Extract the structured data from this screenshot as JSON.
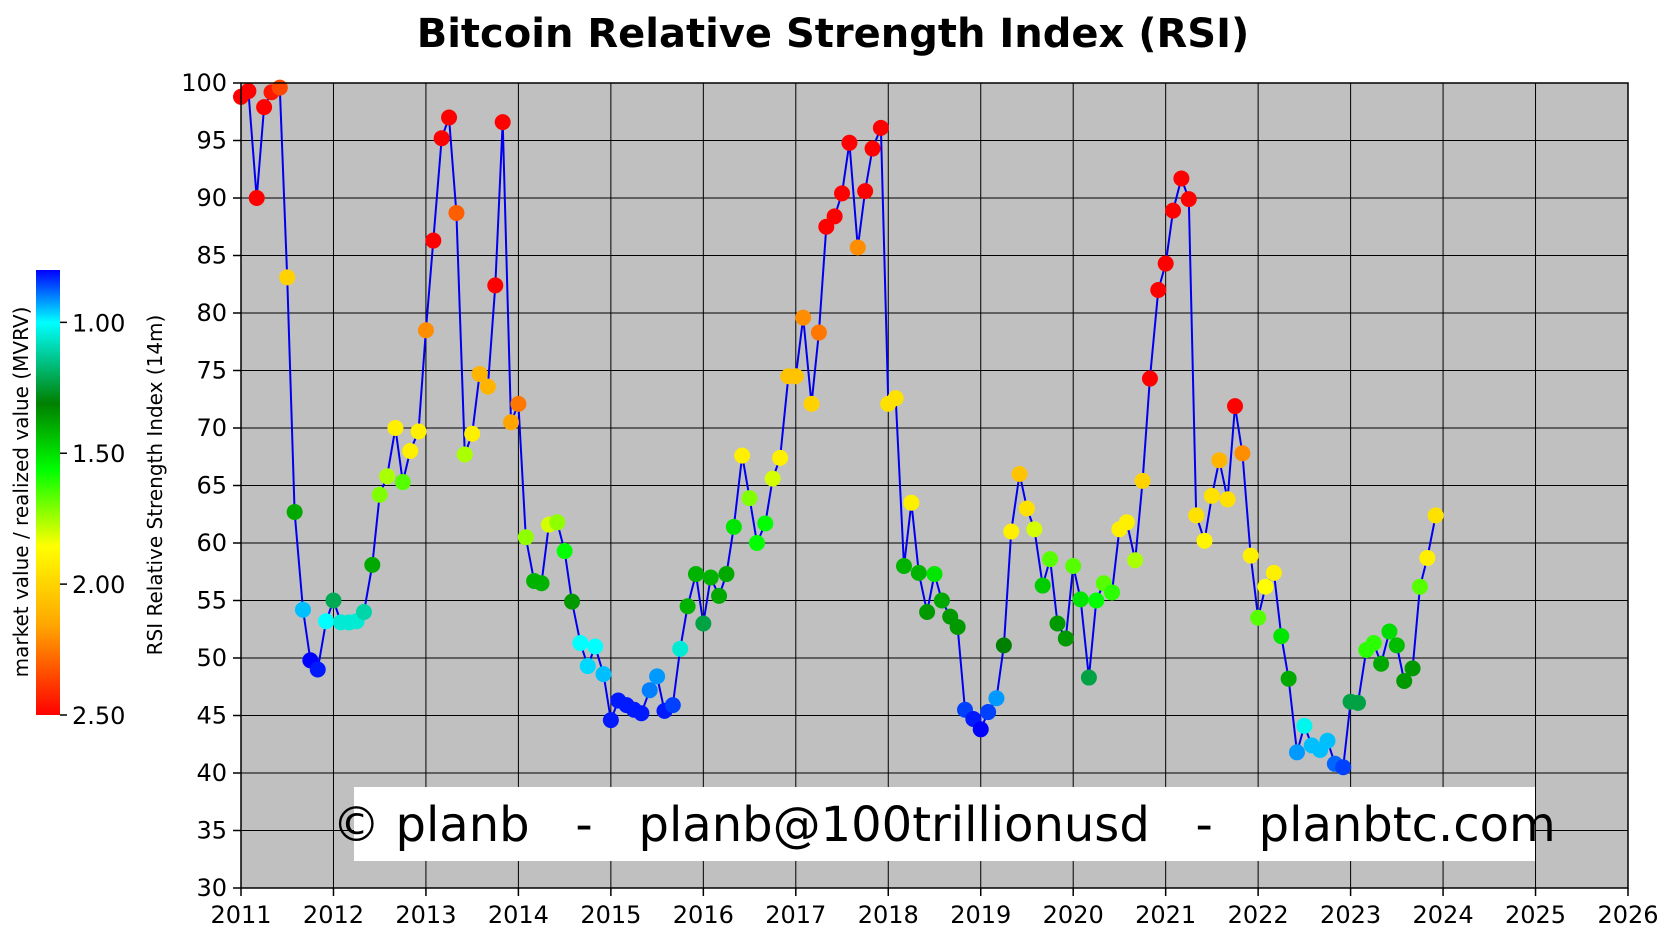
{
  "chart_data": {
    "type": "scatter",
    "title": "Bitcoin Relative Strength Index (RSI)",
    "ylabel": "RSI Relative Strength Index (14m)",
    "xlim": [
      2011,
      2026
    ],
    "ylim": [
      30,
      100
    ],
    "x_ticks": [
      "2011",
      "2012",
      "2013",
      "2014",
      "2015",
      "2016",
      "2017",
      "2018",
      "2019",
      "2020",
      "2021",
      "2022",
      "2023",
      "2024",
      "2025",
      "2026"
    ],
    "y_ticks": [
      "30",
      "35",
      "40",
      "45",
      "50",
      "55",
      "60",
      "65",
      "70",
      "75",
      "80",
      "85",
      "90",
      "95",
      "100"
    ],
    "grid": true,
    "background": "#c0c0c0",
    "line_color": "#0000ee",
    "colorbar": {
      "label": "market value / realized value (MVRV)",
      "ticks": [
        "1.00",
        "1.50",
        "2.00",
        "2.50"
      ],
      "tick_values": [
        1.0,
        1.5,
        2.0,
        2.5
      ],
      "range": [
        0.8,
        2.5
      ],
      "colors": [
        "#0000ff",
        "#00ffff",
        "#008000",
        "#00ff00",
        "#ffff00",
        "#ffa500",
        "#ff0000"
      ]
    },
    "watermark": "© planb   -   planb@100trillionusd   -   planbtc.com",
    "points": [
      {
        "x": 2011.0,
        "y": 98.8,
        "mvrv": 2.5
      },
      {
        "x": 2011.08,
        "y": 99.3,
        "mvrv": 2.5
      },
      {
        "x": 2011.17,
        "y": 90.0,
        "mvrv": 2.5
      },
      {
        "x": 2011.25,
        "y": 97.9,
        "mvrv": 2.5
      },
      {
        "x": 2011.33,
        "y": 99.2,
        "mvrv": 2.45
      },
      {
        "x": 2011.42,
        "y": 99.6,
        "mvrv": 2.35
      },
      {
        "x": 2011.5,
        "y": 83.1,
        "mvrv": 2.0
      },
      {
        "x": 2011.58,
        "y": 62.7,
        "mvrv": 1.38
      },
      {
        "x": 2011.67,
        "y": 54.2,
        "mvrv": 0.95
      },
      {
        "x": 2011.75,
        "y": 49.8,
        "mvrv": 0.8
      },
      {
        "x": 2011.83,
        "y": 49.0,
        "mvrv": 0.82
      },
      {
        "x": 2011.92,
        "y": 53.2,
        "mvrv": 1.0
      },
      {
        "x": 2012.0,
        "y": 55.0,
        "mvrv": 1.2
      },
      {
        "x": 2012.08,
        "y": 53.1,
        "mvrv": 1.05
      },
      {
        "x": 2012.17,
        "y": 53.1,
        "mvrv": 1.05
      },
      {
        "x": 2012.25,
        "y": 53.2,
        "mvrv": 1.05
      },
      {
        "x": 2012.33,
        "y": 54.0,
        "mvrv": 1.1
      },
      {
        "x": 2012.42,
        "y": 58.1,
        "mvrv": 1.38
      },
      {
        "x": 2012.5,
        "y": 64.2,
        "mvrv": 1.7
      },
      {
        "x": 2012.58,
        "y": 65.8,
        "mvrv": 1.75
      },
      {
        "x": 2012.67,
        "y": 70.0,
        "mvrv": 1.9
      },
      {
        "x": 2012.75,
        "y": 65.3,
        "mvrv": 1.65
      },
      {
        "x": 2012.83,
        "y": 68.0,
        "mvrv": 1.9
      },
      {
        "x": 2012.92,
        "y": 69.7,
        "mvrv": 1.9
      },
      {
        "x": 2013.0,
        "y": 78.5,
        "mvrv": 2.2
      },
      {
        "x": 2013.08,
        "y": 86.3,
        "mvrv": 2.5
      },
      {
        "x": 2013.17,
        "y": 95.2,
        "mvrv": 2.5
      },
      {
        "x": 2013.25,
        "y": 97.0,
        "mvrv": 2.5
      },
      {
        "x": 2013.33,
        "y": 88.7,
        "mvrv": 2.3
      },
      {
        "x": 2013.42,
        "y": 67.7,
        "mvrv": 1.75
      },
      {
        "x": 2013.5,
        "y": 69.5,
        "mvrv": 1.9
      },
      {
        "x": 2013.58,
        "y": 74.7,
        "mvrv": 2.1
      },
      {
        "x": 2013.67,
        "y": 73.6,
        "mvrv": 2.1
      },
      {
        "x": 2013.75,
        "y": 82.4,
        "mvrv": 2.5
      },
      {
        "x": 2013.83,
        "y": 96.6,
        "mvrv": 2.5
      },
      {
        "x": 2013.92,
        "y": 70.5,
        "mvrv": 2.15
      },
      {
        "x": 2014.0,
        "y": 72.1,
        "mvrv": 2.25
      },
      {
        "x": 2014.08,
        "y": 60.5,
        "mvrv": 1.72
      },
      {
        "x": 2014.17,
        "y": 56.7,
        "mvrv": 1.4
      },
      {
        "x": 2014.25,
        "y": 56.5,
        "mvrv": 1.4
      },
      {
        "x": 2014.33,
        "y": 61.6,
        "mvrv": 1.8
      },
      {
        "x": 2014.42,
        "y": 61.8,
        "mvrv": 1.72
      },
      {
        "x": 2014.5,
        "y": 59.3,
        "mvrv": 1.55
      },
      {
        "x": 2014.58,
        "y": 54.9,
        "mvrv": 1.35
      },
      {
        "x": 2014.67,
        "y": 51.3,
        "mvrv": 1.0
      },
      {
        "x": 2014.75,
        "y": 49.3,
        "mvrv": 0.97
      },
      {
        "x": 2014.83,
        "y": 51.0,
        "mvrv": 1.0
      },
      {
        "x": 2014.92,
        "y": 48.6,
        "mvrv": 0.95
      },
      {
        "x": 2015.0,
        "y": 44.6,
        "mvrv": 0.82
      },
      {
        "x": 2015.08,
        "y": 46.3,
        "mvrv": 0.82
      },
      {
        "x": 2015.17,
        "y": 45.9,
        "mvrv": 0.82
      },
      {
        "x": 2015.25,
        "y": 45.5,
        "mvrv": 0.82
      },
      {
        "x": 2015.33,
        "y": 45.2,
        "mvrv": 0.82
      },
      {
        "x": 2015.42,
        "y": 47.2,
        "mvrv": 0.9
      },
      {
        "x": 2015.5,
        "y": 48.4,
        "mvrv": 0.92
      },
      {
        "x": 2015.58,
        "y": 45.4,
        "mvrv": 0.82
      },
      {
        "x": 2015.67,
        "y": 45.9,
        "mvrv": 0.85
      },
      {
        "x": 2015.75,
        "y": 50.8,
        "mvrv": 1.05
      },
      {
        "x": 2015.83,
        "y": 54.5,
        "mvrv": 1.4
      },
      {
        "x": 2015.92,
        "y": 57.3,
        "mvrv": 1.4
      },
      {
        "x": 2016.0,
        "y": 53.0,
        "mvrv": 1.22
      },
      {
        "x": 2016.08,
        "y": 57.0,
        "mvrv": 1.4
      },
      {
        "x": 2016.17,
        "y": 55.4,
        "mvrv": 1.38
      },
      {
        "x": 2016.25,
        "y": 57.3,
        "mvrv": 1.38
      },
      {
        "x": 2016.33,
        "y": 61.4,
        "mvrv": 1.5
      },
      {
        "x": 2016.42,
        "y": 67.6,
        "mvrv": 1.9
      },
      {
        "x": 2016.5,
        "y": 63.9,
        "mvrv": 1.7
      },
      {
        "x": 2016.58,
        "y": 60.0,
        "mvrv": 1.55
      },
      {
        "x": 2016.67,
        "y": 61.7,
        "mvrv": 1.55
      },
      {
        "x": 2016.75,
        "y": 65.6,
        "mvrv": 1.8
      },
      {
        "x": 2016.83,
        "y": 67.4,
        "mvrv": 1.9
      },
      {
        "x": 2016.92,
        "y": 74.5,
        "mvrv": 2.05
      },
      {
        "x": 2017.0,
        "y": 74.5,
        "mvrv": 2.05
      },
      {
        "x": 2017.08,
        "y": 79.6,
        "mvrv": 2.2
      },
      {
        "x": 2017.17,
        "y": 72.1,
        "mvrv": 2.0
      },
      {
        "x": 2017.25,
        "y": 78.3,
        "mvrv": 2.25
      },
      {
        "x": 2017.33,
        "y": 87.5,
        "mvrv": 2.5
      },
      {
        "x": 2017.42,
        "y": 88.4,
        "mvrv": 2.5
      },
      {
        "x": 2017.5,
        "y": 90.4,
        "mvrv": 2.5
      },
      {
        "x": 2017.58,
        "y": 94.8,
        "mvrv": 2.5
      },
      {
        "x": 2017.67,
        "y": 85.7,
        "mvrv": 2.2
      },
      {
        "x": 2017.75,
        "y": 90.6,
        "mvrv": 2.5
      },
      {
        "x": 2017.83,
        "y": 94.3,
        "mvrv": 2.5
      },
      {
        "x": 2017.92,
        "y": 96.1,
        "mvrv": 2.5
      },
      {
        "x": 2018.0,
        "y": 72.1,
        "mvrv": 1.95
      },
      {
        "x": 2018.08,
        "y": 72.6,
        "mvrv": 1.95
      },
      {
        "x": 2018.17,
        "y": 58.0,
        "mvrv": 1.4
      },
      {
        "x": 2018.25,
        "y": 63.5,
        "mvrv": 1.9
      },
      {
        "x": 2018.33,
        "y": 57.4,
        "mvrv": 1.4
      },
      {
        "x": 2018.42,
        "y": 54.0,
        "mvrv": 1.35
      },
      {
        "x": 2018.5,
        "y": 57.3,
        "mvrv": 1.5
      },
      {
        "x": 2018.58,
        "y": 55.0,
        "mvrv": 1.38
      },
      {
        "x": 2018.67,
        "y": 53.6,
        "mvrv": 1.35
      },
      {
        "x": 2018.75,
        "y": 52.7,
        "mvrv": 1.35
      },
      {
        "x": 2018.83,
        "y": 45.5,
        "mvrv": 0.85
      },
      {
        "x": 2018.92,
        "y": 44.7,
        "mvrv": 0.82
      },
      {
        "x": 2019.0,
        "y": 43.8,
        "mvrv": 0.8
      },
      {
        "x": 2019.08,
        "y": 45.3,
        "mvrv": 0.85
      },
      {
        "x": 2019.17,
        "y": 46.5,
        "mvrv": 0.92
      },
      {
        "x": 2019.25,
        "y": 51.1,
        "mvrv": 1.3
      },
      {
        "x": 2019.33,
        "y": 61.0,
        "mvrv": 1.9
      },
      {
        "x": 2019.42,
        "y": 66.0,
        "mvrv": 2.05
      },
      {
        "x": 2019.5,
        "y": 63.0,
        "mvrv": 1.95
      },
      {
        "x": 2019.58,
        "y": 61.2,
        "mvrv": 1.8
      },
      {
        "x": 2019.67,
        "y": 56.3,
        "mvrv": 1.45
      },
      {
        "x": 2019.75,
        "y": 58.6,
        "mvrv": 1.65
      },
      {
        "x": 2019.83,
        "y": 53.0,
        "mvrv": 1.35
      },
      {
        "x": 2019.92,
        "y": 51.7,
        "mvrv": 1.35
      },
      {
        "x": 2020.0,
        "y": 58.0,
        "mvrv": 1.65
      },
      {
        "x": 2020.08,
        "y": 55.1,
        "mvrv": 1.5
      },
      {
        "x": 2020.17,
        "y": 48.3,
        "mvrv": 1.22
      },
      {
        "x": 2020.25,
        "y": 55.0,
        "mvrv": 1.55
      },
      {
        "x": 2020.33,
        "y": 56.5,
        "mvrv": 1.65
      },
      {
        "x": 2020.42,
        "y": 55.7,
        "mvrv": 1.6
      },
      {
        "x": 2020.5,
        "y": 61.2,
        "mvrv": 1.9
      },
      {
        "x": 2020.58,
        "y": 61.8,
        "mvrv": 1.9
      },
      {
        "x": 2020.67,
        "y": 58.5,
        "mvrv": 1.75
      },
      {
        "x": 2020.75,
        "y": 65.4,
        "mvrv": 2.0
      },
      {
        "x": 2020.83,
        "y": 74.3,
        "mvrv": 2.5
      },
      {
        "x": 2020.92,
        "y": 82.0,
        "mvrv": 2.5
      },
      {
        "x": 2021.0,
        "y": 84.3,
        "mvrv": 2.5
      },
      {
        "x": 2021.08,
        "y": 88.9,
        "mvrv": 2.5
      },
      {
        "x": 2021.17,
        "y": 91.7,
        "mvrv": 2.5
      },
      {
        "x": 2021.25,
        "y": 89.9,
        "mvrv": 2.5
      },
      {
        "x": 2021.33,
        "y": 62.4,
        "mvrv": 1.95
      },
      {
        "x": 2021.42,
        "y": 60.2,
        "mvrv": 1.88
      },
      {
        "x": 2021.5,
        "y": 64.1,
        "mvrv": 1.95
      },
      {
        "x": 2021.58,
        "y": 67.2,
        "mvrv": 2.1
      },
      {
        "x": 2021.67,
        "y": 63.8,
        "mvrv": 1.95
      },
      {
        "x": 2021.75,
        "y": 71.9,
        "mvrv": 2.5
      },
      {
        "x": 2021.83,
        "y": 67.8,
        "mvrv": 2.2
      },
      {
        "x": 2021.92,
        "y": 58.9,
        "mvrv": 1.9
      },
      {
        "x": 2022.0,
        "y": 53.5,
        "mvrv": 1.65
      },
      {
        "x": 2022.08,
        "y": 56.2,
        "mvrv": 1.85
      },
      {
        "x": 2022.17,
        "y": 57.4,
        "mvrv": 1.9
      },
      {
        "x": 2022.25,
        "y": 51.9,
        "mvrv": 1.5
      },
      {
        "x": 2022.33,
        "y": 48.2,
        "mvrv": 1.38
      },
      {
        "x": 2022.42,
        "y": 41.8,
        "mvrv": 0.92
      },
      {
        "x": 2022.5,
        "y": 44.1,
        "mvrv": 1.02
      },
      {
        "x": 2022.58,
        "y": 42.4,
        "mvrv": 0.95
      },
      {
        "x": 2022.67,
        "y": 42.0,
        "mvrv": 0.95
      },
      {
        "x": 2022.75,
        "y": 42.8,
        "mvrv": 0.95
      },
      {
        "x": 2022.83,
        "y": 40.8,
        "mvrv": 0.88
      },
      {
        "x": 2022.92,
        "y": 40.5,
        "mvrv": 0.85
      },
      {
        "x": 2023.0,
        "y": 46.2,
        "mvrv": 1.22
      },
      {
        "x": 2023.08,
        "y": 46.1,
        "mvrv": 1.22
      },
      {
        "x": 2023.17,
        "y": 50.7,
        "mvrv": 1.6
      },
      {
        "x": 2023.25,
        "y": 51.3,
        "mvrv": 1.6
      },
      {
        "x": 2023.33,
        "y": 49.5,
        "mvrv": 1.38
      },
      {
        "x": 2023.42,
        "y": 52.3,
        "mvrv": 1.48
      },
      {
        "x": 2023.5,
        "y": 51.1,
        "mvrv": 1.42
      },
      {
        "x": 2023.58,
        "y": 48.0,
        "mvrv": 1.35
      },
      {
        "x": 2023.67,
        "y": 49.1,
        "mvrv": 1.35
      },
      {
        "x": 2023.75,
        "y": 56.2,
        "mvrv": 1.65
      },
      {
        "x": 2023.83,
        "y": 58.7,
        "mvrv": 1.9
      },
      {
        "x": 2023.92,
        "y": 62.4,
        "mvrv": 1.95
      }
    ]
  }
}
